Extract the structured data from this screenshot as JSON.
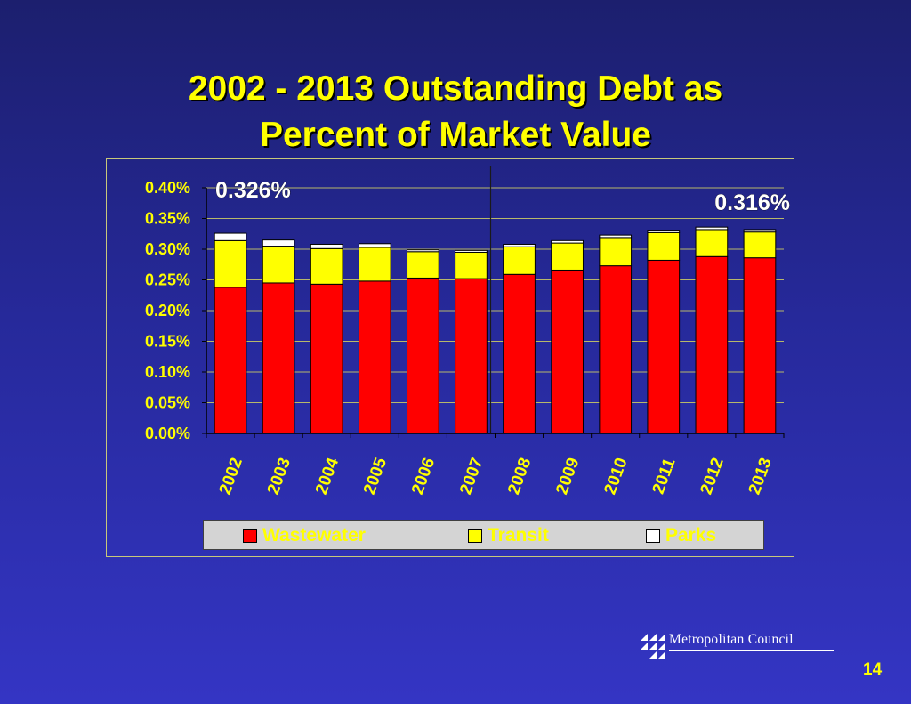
{
  "slide": {
    "title_line1": "2002 - 2013 Outstanding Debt as",
    "title_line2": "Percent of Market Value",
    "page_number": "14",
    "logo_text": "Metropolitan Council"
  },
  "chart_data": {
    "type": "bar",
    "stacked": true,
    "categories": [
      "2002",
      "2003",
      "2004",
      "2005",
      "2006",
      "2007",
      "2008",
      "2009",
      "2010",
      "2011",
      "2012",
      "2013"
    ],
    "series": [
      {
        "name": "Wastewater",
        "color": "#ff0000",
        "values": [
          0.238,
          0.245,
          0.243,
          0.248,
          0.253,
          0.252,
          0.259,
          0.266,
          0.273,
          0.282,
          0.288,
          0.286
        ]
      },
      {
        "name": "Transit",
        "color": "#ffff00",
        "values": [
          0.076,
          0.06,
          0.058,
          0.055,
          0.043,
          0.043,
          0.045,
          0.044,
          0.046,
          0.045,
          0.044,
          0.042
        ]
      },
      {
        "name": "Parks",
        "color": "#ffffff",
        "values": [
          0.012,
          0.01,
          0.007,
          0.006,
          0.003,
          0.003,
          0.004,
          0.004,
          0.004,
          0.004,
          0.004,
          0.004
        ]
      }
    ],
    "ylim": [
      0,
      0.4
    ],
    "yticks": [
      "0.00%",
      "0.05%",
      "0.10%",
      "0.15%",
      "0.20%",
      "0.25%",
      "0.30%",
      "0.35%",
      "0.40%"
    ],
    "grid": true,
    "legend_position": "bottom",
    "annotations": [
      "0.326%",
      "0.316%"
    ],
    "divider_after_category": "2007"
  }
}
